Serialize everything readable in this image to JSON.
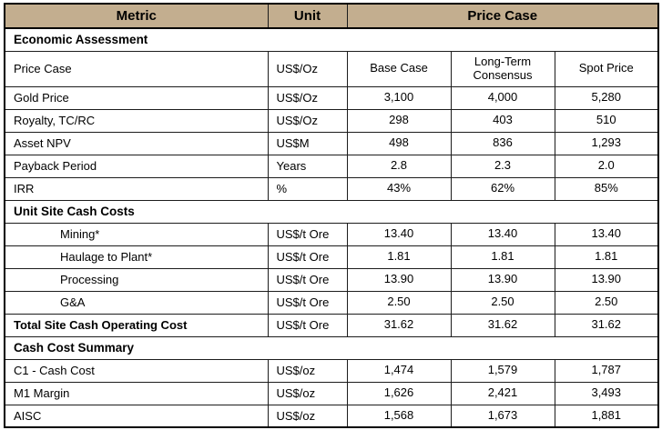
{
  "colors": {
    "header_bg": "#c3ae8f",
    "border": "#1c1c1c",
    "text": "#000000"
  },
  "header": {
    "metric": "Metric",
    "unit": "Unit",
    "price_case": "Price Case"
  },
  "rows": [
    {
      "type": "section",
      "label": "Economic Assessment"
    },
    {
      "type": "data",
      "tall": true,
      "metric": "Price Case",
      "unit": "US$/Oz",
      "values": [
        "Base Case",
        "Long-Term Consensus",
        "Spot Price"
      ]
    },
    {
      "type": "data",
      "metric": "Gold Price",
      "unit": "US$/Oz",
      "values": [
        "3,100",
        "4,000",
        "5,280"
      ]
    },
    {
      "type": "data",
      "metric": "Royalty, TC/RC",
      "unit": "US$/Oz",
      "values": [
        "298",
        "403",
        "510"
      ]
    },
    {
      "type": "data",
      "metric": "Asset NPV",
      "unit": "US$M",
      "values": [
        "498",
        "836",
        "1,293"
      ]
    },
    {
      "type": "data",
      "metric": "Payback Period",
      "unit": "Years",
      "values": [
        "2.8",
        "2.3",
        "2.0"
      ]
    },
    {
      "type": "data",
      "metric": "IRR",
      "unit": "%",
      "values": [
        "43%",
        "62%",
        "85%"
      ]
    },
    {
      "type": "section",
      "label": "Unit Site Cash Costs"
    },
    {
      "type": "data",
      "indent": true,
      "metric": "Mining*",
      "unit": "US$/t Ore",
      "values": [
        "13.40",
        "13.40",
        "13.40"
      ]
    },
    {
      "type": "data",
      "indent": true,
      "metric": "Haulage to Plant*",
      "unit": "US$/t Ore",
      "values": [
        "1.81",
        "1.81",
        "1.81"
      ]
    },
    {
      "type": "data",
      "indent": true,
      "metric": "Processing",
      "unit": "US$/t Ore",
      "values": [
        "13.90",
        "13.90",
        "13.90"
      ]
    },
    {
      "type": "data",
      "indent": true,
      "metric": "G&A",
      "unit": "US$/t Ore",
      "values": [
        "2.50",
        "2.50",
        "2.50"
      ]
    },
    {
      "type": "data",
      "bold": true,
      "metric": "Total Site Cash Operating Cost",
      "unit": "US$/t Ore",
      "values": [
        "31.62",
        "31.62",
        "31.62"
      ]
    },
    {
      "type": "section",
      "label": "Cash Cost Summary"
    },
    {
      "type": "data",
      "metric": "C1 - Cash Cost",
      "unit": "US$/oz",
      "values": [
        "1,474",
        "1,579",
        "1,787"
      ]
    },
    {
      "type": "data",
      "metric": "M1 Margin",
      "unit": "US$/oz",
      "values": [
        "1,626",
        "2,421",
        "3,493"
      ]
    },
    {
      "type": "data",
      "metric": "AISC",
      "unit": "US$/oz",
      "values": [
        "1,568",
        "1,673",
        "1,881"
      ]
    }
  ]
}
